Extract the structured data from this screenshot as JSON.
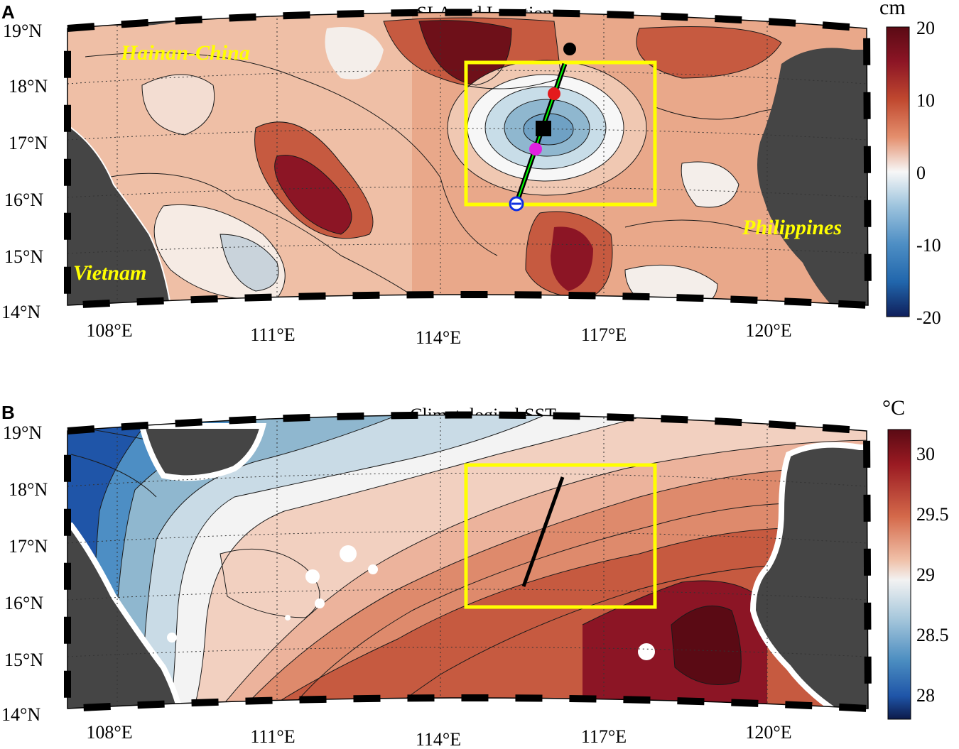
{
  "panel_a": {
    "letter": "A",
    "title": "SLA and Location",
    "colorbar": {
      "unit": "cm",
      "ticks": [
        "20",
        "10",
        "0",
        "-10",
        "-20"
      ],
      "colors": [
        "#f7f7f7",
        "#f4c8a8",
        "#e48f6d",
        "#c0482f",
        "#8c1525",
        "#5a0a14",
        "#0f2f6b",
        "#2166ac",
        "#4d8ec4",
        "#9cc3dd",
        "#d6e6f0"
      ]
    },
    "place_labels": [
      "Hainan-China",
      "Vietnam",
      "Philippines"
    ],
    "lat_labels": [
      "19°N",
      "18°N",
      "17°N",
      "16°N",
      "15°N",
      "14°N"
    ],
    "lon_labels": [
      "108°E",
      "111°E",
      "114°E",
      "117°E",
      "120°E"
    ]
  },
  "panel_b": {
    "letter": "B",
    "title": "Climatological SST",
    "colorbar": {
      "unit": "°C",
      "ticks": [
        "30",
        "29.5",
        "29",
        "28.5",
        "28"
      ]
    },
    "lat_labels": [
      "19°N",
      "18°N",
      "17°N",
      "16°N",
      "15°N",
      "14°N"
    ],
    "lon_labels": [
      "108°E",
      "111°E",
      "114°E",
      "117°E",
      "120°E"
    ]
  },
  "colors": {
    "land": "#454545",
    "box": "#ffff00",
    "transect": "#00ff00"
  }
}
